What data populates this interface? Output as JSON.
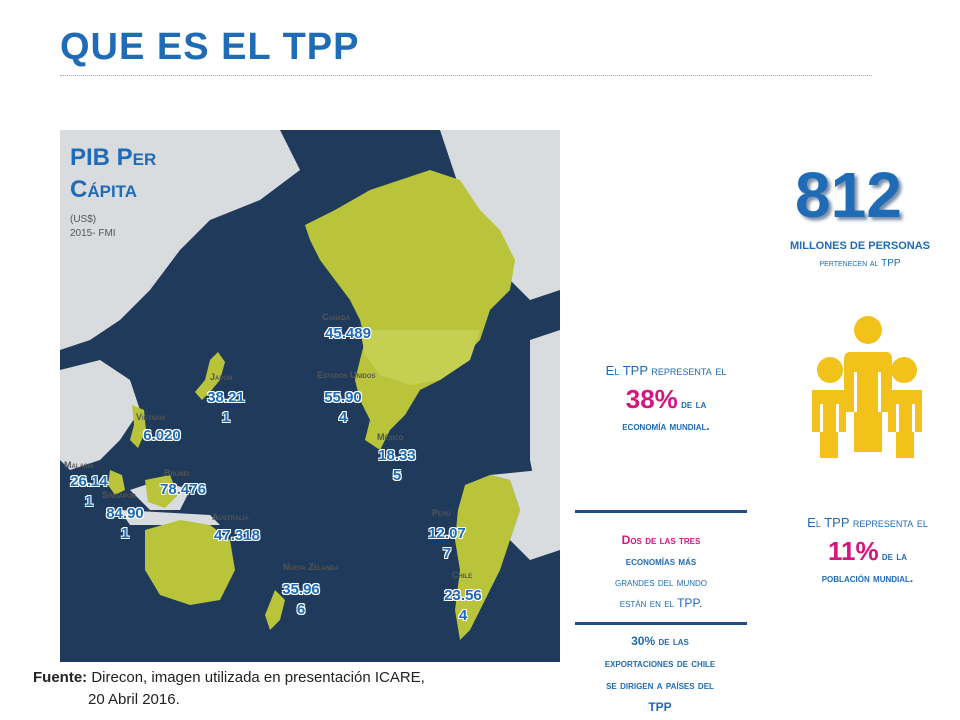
{
  "page": {
    "title": "QUE ES EL TPP"
  },
  "pib": {
    "title_line1": "PIB Per",
    "title_line2": "Cápita",
    "unit": "(US$)",
    "source": "2015- FMI"
  },
  "countries": [
    {
      "name": "Canadá",
      "value": "45.489"
    },
    {
      "name": "Estados Unidos",
      "value": "55.90 4"
    },
    {
      "name": "México",
      "value": "18.33 5"
    },
    {
      "name": "Japón",
      "value": "38.21 1"
    },
    {
      "name": "Vietnam",
      "value": "6.020"
    },
    {
      "name": "Malasia",
      "value": "26.14 1"
    },
    {
      "name": "Brunei",
      "value": "78.476"
    },
    {
      "name": "Singapur",
      "value": "84.90 1"
    },
    {
      "name": "Australia",
      "value": "47.318"
    },
    {
      "name": "Nueva Zelanda",
      "value": "35.96 6"
    },
    {
      "name": "Perú",
      "value": "12.07 7"
    },
    {
      "name": "Chile",
      "value": "23.56 4"
    }
  ],
  "headline": {
    "number": "812",
    "line1": "MILLONES DE PERSONAS",
    "line2": "pertenecen al TPP"
  },
  "stat_economia": {
    "pre": "El TPP representa el",
    "pct": "38%",
    "post1": "de la",
    "post2": "economía mundial."
  },
  "stat_poblacion": {
    "pre": "El TPP representa el",
    "pct": "11%",
    "post1": "de la",
    "post2": "población mundial."
  },
  "stat_grandes": {
    "p1": "Dos de las tres",
    "p2": "economías más",
    "p3": "grandes del mundo",
    "p4": "están en el TPP."
  },
  "stat_export": {
    "p1": "30% de las",
    "p2": "exportaciones de chile",
    "p3": "se dirigen a países del",
    "p4": "TPP"
  },
  "footer": {
    "label": "Fuente:",
    "line1": "Direcon, imagen utilizada en presentación ICARE,",
    "line2": "20 Abril 2016."
  },
  "colors": {
    "accent": "#1f6bb5",
    "highlight": "#d6157d",
    "land_tpp": "#b9c43a",
    "ocean": "#1f3a5a",
    "people": "#f2c21b"
  }
}
